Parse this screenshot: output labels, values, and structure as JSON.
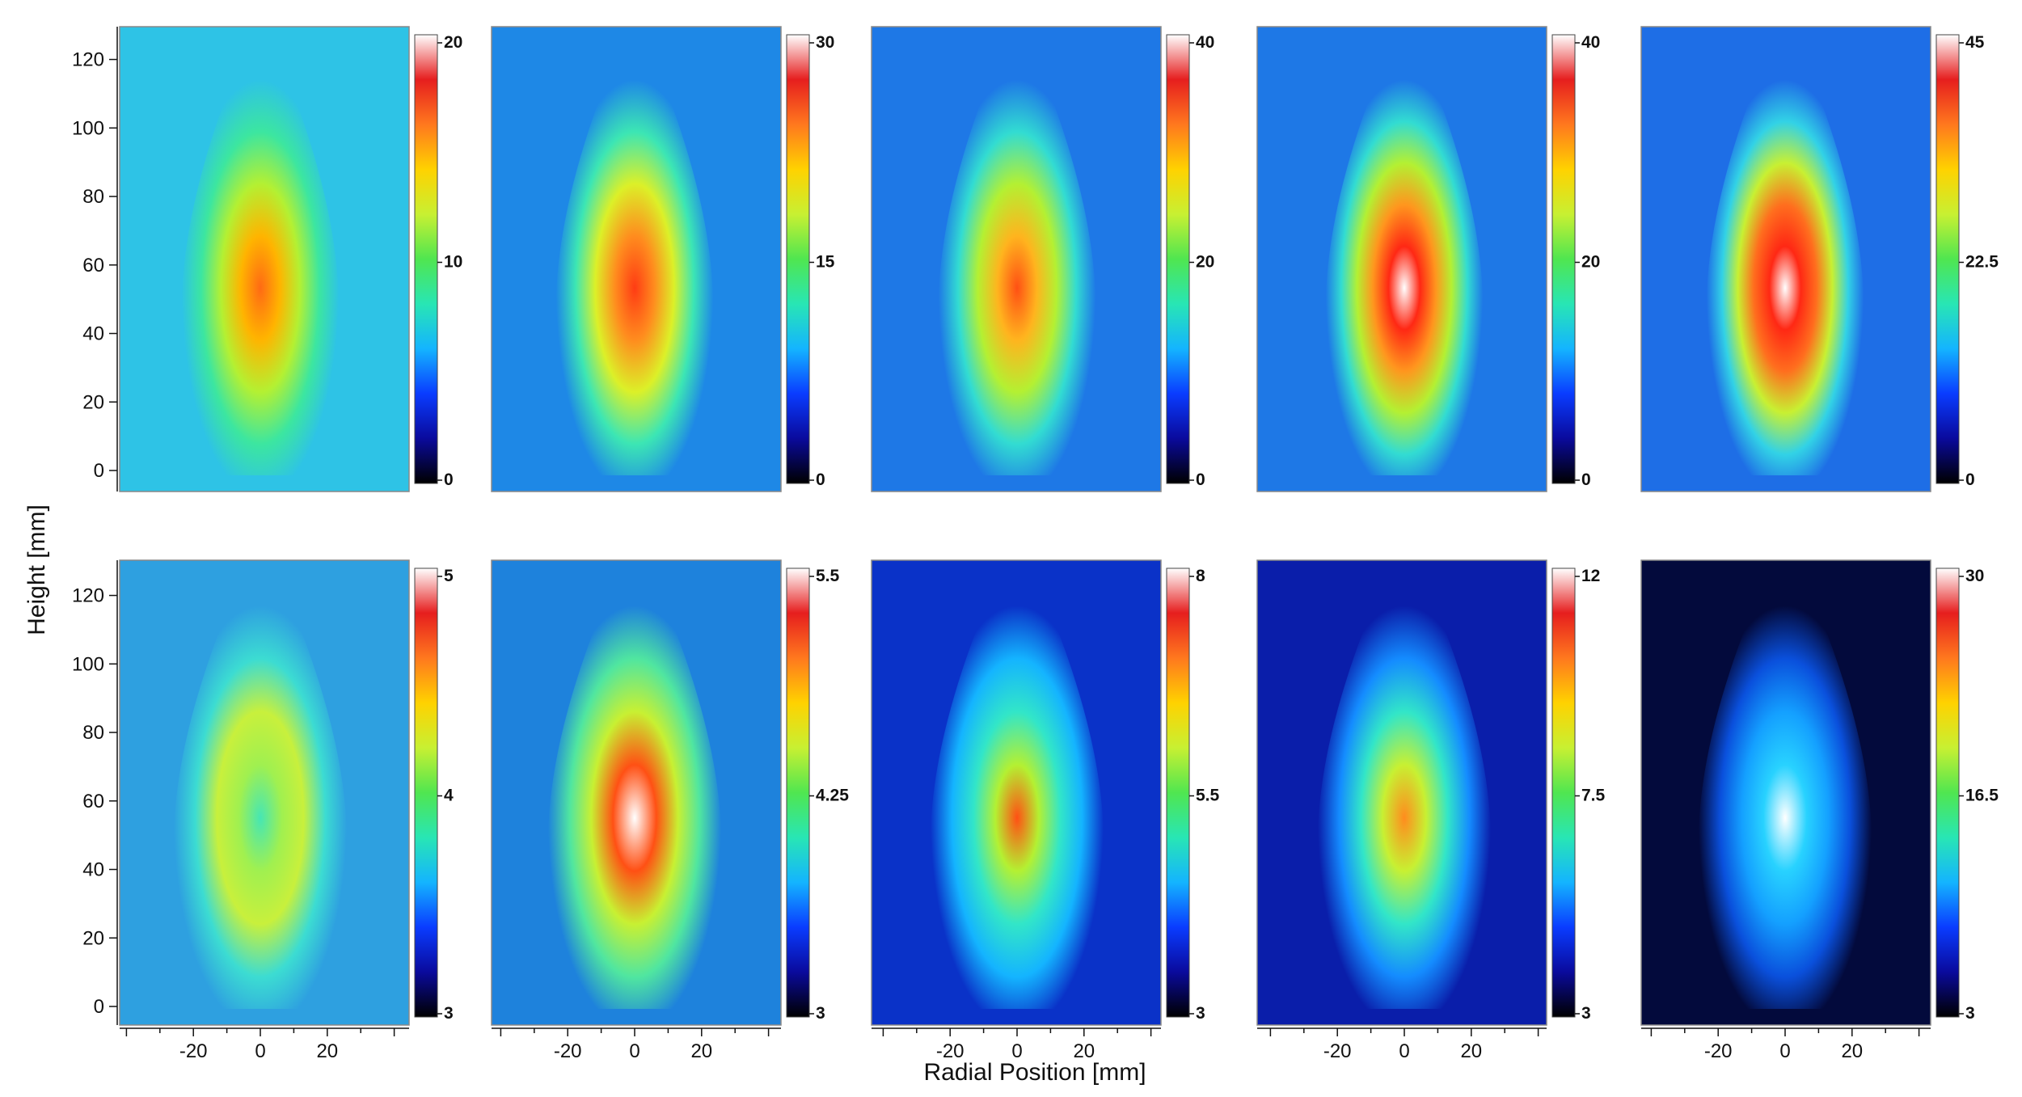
{
  "figure": {
    "ylabel": "Height [mm]",
    "xlabel": "Radial Position [mm]"
  },
  "chart_data": {
    "type": "heatmap",
    "xlabel": "Radial Position [mm]",
    "ylabel": "Height [mm]",
    "x_ticks": [
      -20,
      0,
      20
    ],
    "y_ticks": [
      0,
      20,
      40,
      60,
      80,
      100,
      120
    ],
    "xlim": [
      -42,
      42
    ],
    "ylim": [
      -5,
      130
    ],
    "colormap": [
      "#000000",
      "#0a0a9c",
      "#0a3cff",
      "#14b4ff",
      "#28e6b4",
      "#50e650",
      "#c8f032",
      "#ffd200",
      "#ff781e",
      "#e61e1e",
      "#ffffff"
    ],
    "panels": [
      {
        "row": 0,
        "col": 0,
        "colorbar": {
          "min": 0,
          "mid": 10,
          "max": 20,
          "labels": [
            "20",
            "10",
            "0"
          ]
        },
        "background": "#2ec3e6"
      },
      {
        "row": 0,
        "col": 1,
        "colorbar": {
          "min": 0,
          "mid": 15,
          "max": 30,
          "labels": [
            "30",
            "15",
            "0"
          ]
        },
        "background": "#1e88e6"
      },
      {
        "row": 0,
        "col": 2,
        "colorbar": {
          "min": 0,
          "mid": 20,
          "max": 40,
          "labels": [
            "40",
            "20",
            "0"
          ]
        },
        "background": "#1e78e6"
      },
      {
        "row": 0,
        "col": 3,
        "colorbar": {
          "min": 0,
          "mid": 20,
          "max": 40,
          "labels": [
            "40",
            "20",
            "0"
          ]
        },
        "background": "#1e78e6"
      },
      {
        "row": 0,
        "col": 4,
        "colorbar": {
          "min": 0,
          "mid": 22.5,
          "max": 45,
          "labels": [
            "45",
            "22.5",
            "0"
          ]
        },
        "background": "#1e6ee6"
      },
      {
        "row": 1,
        "col": 0,
        "colorbar": {
          "min": 3,
          "mid": 4,
          "max": 5,
          "labels": [
            "5",
            "4",
            "3"
          ]
        },
        "background": "#2ea0e0"
      },
      {
        "row": 1,
        "col": 1,
        "colorbar": {
          "min": 3,
          "mid": 4.25,
          "max": 5.5,
          "labels": [
            "5.5",
            "4.25",
            "3"
          ]
        },
        "background": "#1e82dc"
      },
      {
        "row": 1,
        "col": 2,
        "colorbar": {
          "min": 3,
          "mid": 5.5,
          "max": 8,
          "labels": [
            "8",
            "5.5",
            "3"
          ]
        },
        "background": "#0a32c8"
      },
      {
        "row": 1,
        "col": 3,
        "colorbar": {
          "min": 3,
          "mid": 7.5,
          "max": 12,
          "labels": [
            "12",
            "7.5",
            "3"
          ]
        },
        "background": "#0a1eaa"
      },
      {
        "row": 1,
        "col": 4,
        "colorbar": {
          "min": 3,
          "mid": 16.5,
          "max": 30,
          "labels": [
            "30",
            "16.5",
            "3"
          ]
        },
        "background": "#030a3c"
      }
    ]
  }
}
